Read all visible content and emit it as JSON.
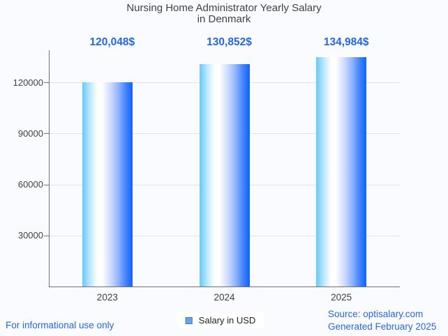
{
  "page": {
    "background": "#fafbfe",
    "accent_blue": "#2667e4",
    "footer_left": "For informational use only",
    "source_line1": "Source: optisalary.com",
    "source_line2": "Generated February 2025"
  },
  "chart_data": {
    "type": "bar",
    "title_line1": "Nursing Home Administrator Yearly Salary",
    "title_line2": "in Denmark",
    "categories": [
      "2023",
      "2024",
      "2025"
    ],
    "series": [
      {
        "name": "Salary in USD",
        "values": [
          120048,
          130852,
          134984
        ],
        "value_labels": [
          "120,048$",
          "130,852$",
          "134,984$"
        ]
      }
    ],
    "y_ticks": [
      {
        "value": 30000,
        "label": "30000"
      },
      {
        "value": 60000,
        "label": "60000"
      },
      {
        "value": 90000,
        "label": "90000"
      },
      {
        "value": 120000,
        "label": "120000"
      }
    ],
    "ylim": [
      0,
      139000
    ],
    "grid": true,
    "legend_position": "bottom",
    "colors": {
      "title": "#414141",
      "value_label": "#2366e8",
      "axis": "#6f6f6f",
      "gridline": "#e2e3e6",
      "tick_label": "#424242",
      "legend_swatch_fill": "#64a7e8",
      "legend_swatch_border": "#4078c0",
      "bar_gradient_css": "linear-gradient(90deg,#66c9fa 0%,#bfe9fe 16%,#ffffff 30%,#ffffff 39%,#cfdcff 56%,#8fb3ff 72%,#4685ff 86%,#0e63f8 100%)"
    }
  }
}
